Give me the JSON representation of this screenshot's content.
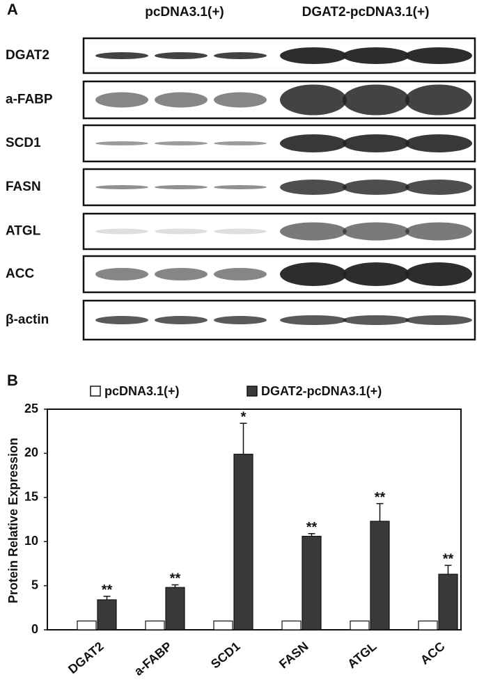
{
  "panel_a": {
    "label": "A",
    "groups": [
      "pcDNA3.1(+)",
      "DGAT2-pcDNA3.1(+)"
    ],
    "rows": [
      "DGAT2",
      "a-FABP",
      "SCD1",
      "FASN",
      "ATGL",
      "ACC",
      "β-actin"
    ]
  },
  "chart_data": {
    "type": "bar",
    "panel_label": "B",
    "y_label": "Protein Relative Expression",
    "categories": [
      "DGAT2",
      "a-FABP",
      "SCD1",
      "FASN",
      "ATGL",
      "ACC"
    ],
    "series": [
      {
        "name": "pcDNA3.1(+)",
        "color": "#ffffff",
        "values": [
          1,
          1,
          1,
          1,
          1,
          1
        ]
      },
      {
        "name": "DGAT2-pcDNA3.1(+)",
        "color": "#3a3a3a",
        "values": [
          3.4,
          4.8,
          19.9,
          10.6,
          12.3,
          6.3
        ],
        "errors": [
          0.4,
          0.3,
          3.5,
          0.3,
          2.0,
          1.0
        ],
        "annotations": [
          "**",
          "**",
          "*",
          "**",
          "**",
          "**"
        ]
      }
    ],
    "ylim": [
      0,
      25
    ],
    "yticks": [
      0,
      5,
      10,
      15,
      20,
      25
    ],
    "grid": false,
    "legend": "top"
  }
}
